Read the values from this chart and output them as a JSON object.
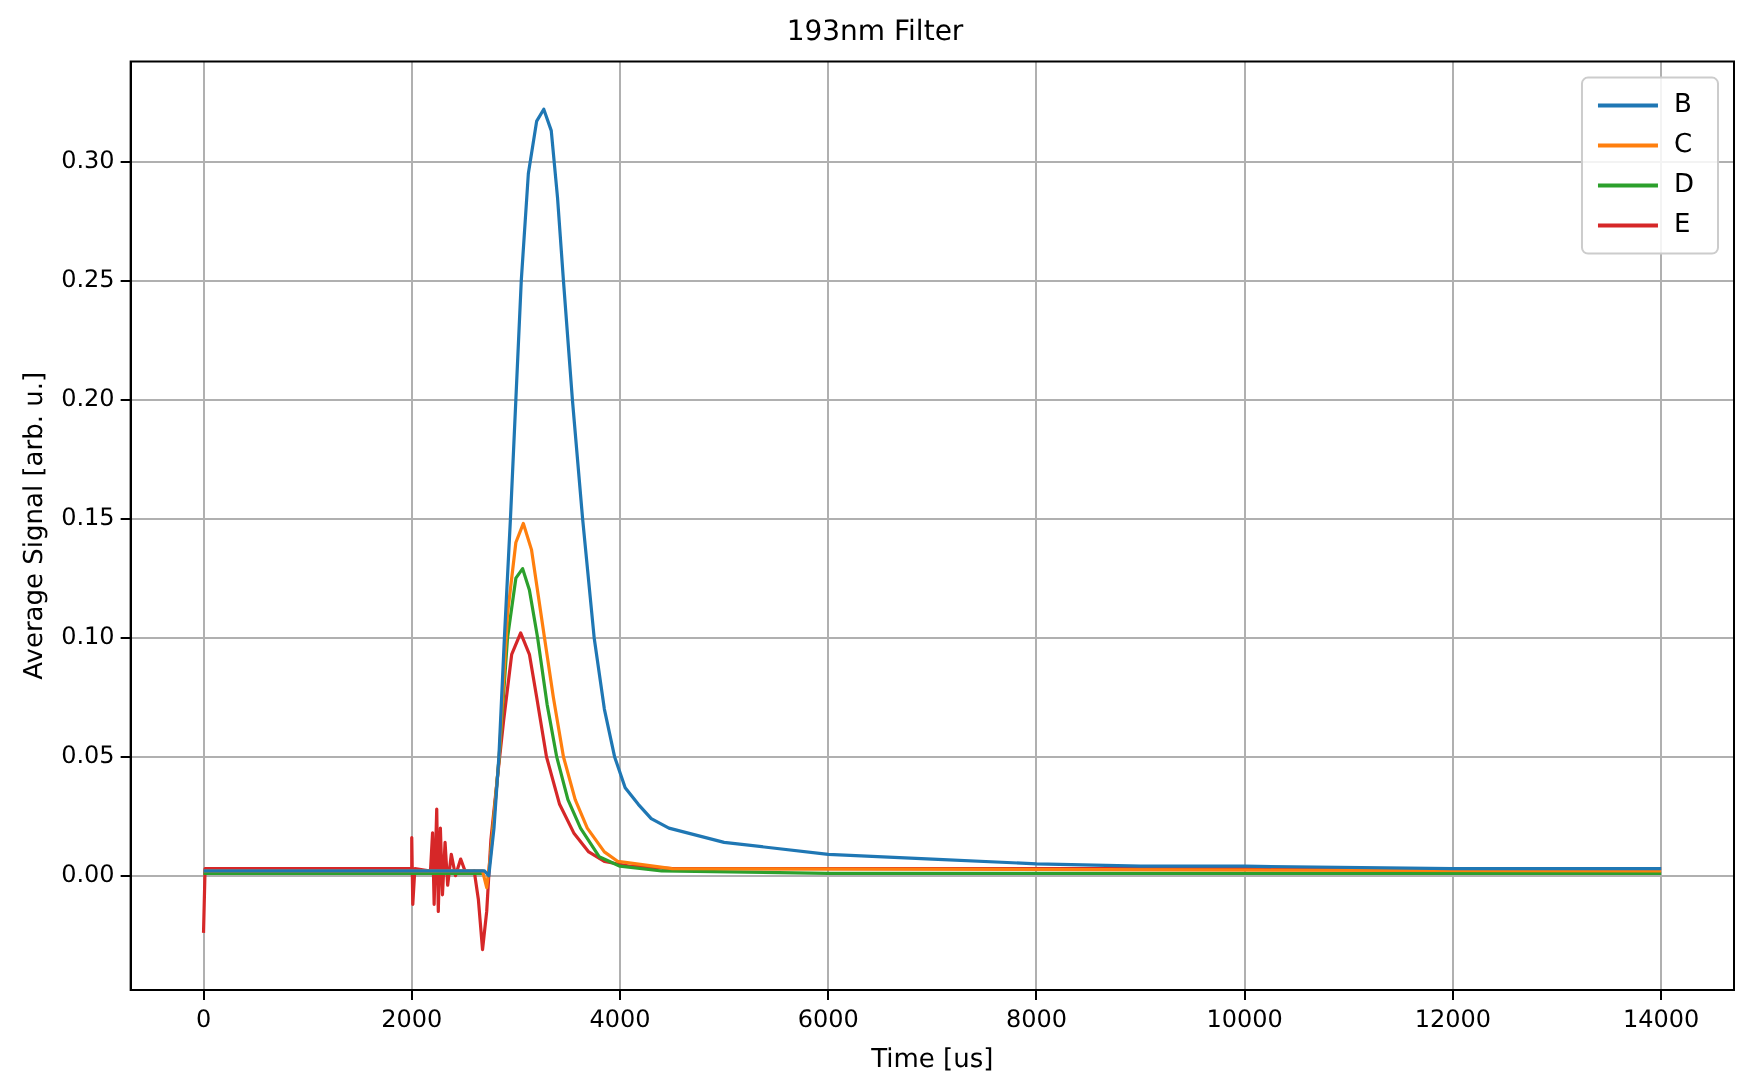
{
  "chart_data": {
    "type": "line",
    "title": "193nm Filter",
    "xlabel": "Time [us]",
    "ylabel": "Average Signal [arb. u.]",
    "xlim": [
      -700,
      14700
    ],
    "xticks": [
      0,
      2000,
      4000,
      6000,
      8000,
      10000,
      12000,
      14000
    ],
    "ylim": [
      -0.048,
      0.342
    ],
    "yticks": [
      {
        "value": 0,
        "label": "0.00"
      },
      0.05,
      {
        "value": 0.1,
        "label": "0.10"
      },
      0.15,
      {
        "value": 0.2,
        "label": "0.20"
      },
      0.25,
      {
        "value": 0.3,
        "label": "0.30"
      }
    ],
    "grid": true,
    "legend": "top right",
    "series": [
      {
        "name": "B",
        "color": "#1f77b4",
        "x": [
          0,
          2700,
          2740,
          2790,
          2837,
          2890,
          2948,
          3000,
          3052,
          3120,
          3200,
          3268,
          3340,
          3400,
          3457,
          3543,
          3641,
          3752,
          3850,
          3948,
          4050,
          4176,
          4300,
          4470,
          5000,
          6000,
          7000,
          8000,
          9000,
          10000,
          12000,
          14000
        ],
        "values": [
          0.002,
          0.002,
          0.0,
          0.02,
          0.05,
          0.1,
          0.15,
          0.2,
          0.25,
          0.295,
          0.317,
          0.322,
          0.313,
          0.285,
          0.25,
          0.2,
          0.15,
          0.1,
          0.07,
          0.05,
          0.037,
          0.03,
          0.024,
          0.02,
          0.014,
          0.009,
          0.007,
          0.005,
          0.004,
          0.004,
          0.003,
          0.003
        ]
      },
      {
        "name": "C",
        "color": "#ff7f0e",
        "x": [
          0,
          2680,
          2720,
          2760,
          2840,
          2920,
          3000,
          3072,
          3150,
          3275,
          3360,
          3457,
          3570,
          3686,
          3850,
          3980,
          4500,
          14000
        ],
        "values": [
          0.002,
          0.002,
          -0.005,
          0.01,
          0.05,
          0.11,
          0.14,
          0.148,
          0.137,
          0.1,
          0.075,
          0.05,
          0.032,
          0.02,
          0.01,
          0.006,
          0.003,
          0.002
        ]
      },
      {
        "name": "D",
        "color": "#2ca02c",
        "x": [
          0,
          2680,
          2720,
          2760,
          2840,
          2920,
          3000,
          3065,
          3130,
          3209,
          3300,
          3392,
          3500,
          3621,
          3800,
          4000,
          4400,
          6000,
          10000,
          14000
        ],
        "values": [
          0.001,
          0.001,
          null,
          0.01,
          0.05,
          0.1,
          0.125,
          0.129,
          0.12,
          0.1,
          0.072,
          0.05,
          0.032,
          0.02,
          0.008,
          0.004,
          0.002,
          0.001,
          0.001,
          0.001
        ]
      },
      {
        "name": "E",
        "color": "#d62728",
        "x": [
          0,
          15,
          1990,
          2000,
          2010,
          2030,
          2180,
          2200,
          2215,
          2240,
          2255,
          2275,
          2295,
          2320,
          2345,
          2380,
          2420,
          2470,
          2520,
          2600,
          2640,
          2680,
          2720,
          2760,
          2820,
          2882,
          2960,
          3046,
          3130,
          3200,
          3294,
          3420,
          3556,
          3700,
          3850,
          4100,
          4500,
          6000,
          8000,
          10000,
          12000,
          14000
        ],
        "values": [
          -0.024,
          0.003,
          0.003,
          0.016,
          -0.012,
          0.003,
          0.002,
          0.018,
          -0.012,
          0.028,
          -0.015,
          0.02,
          -0.008,
          0.014,
          -0.004,
          0.009,
          0.0,
          0.007,
          0.001,
          0.002,
          -0.01,
          -0.031,
          -0.015,
          0.015,
          0.04,
          0.065,
          0.093,
          0.102,
          0.093,
          0.075,
          0.05,
          0.03,
          0.018,
          0.01,
          0.006,
          0.004,
          0.003,
          0.003,
          0.003,
          0.003,
          0.003,
          0.003
        ]
      }
    ]
  }
}
